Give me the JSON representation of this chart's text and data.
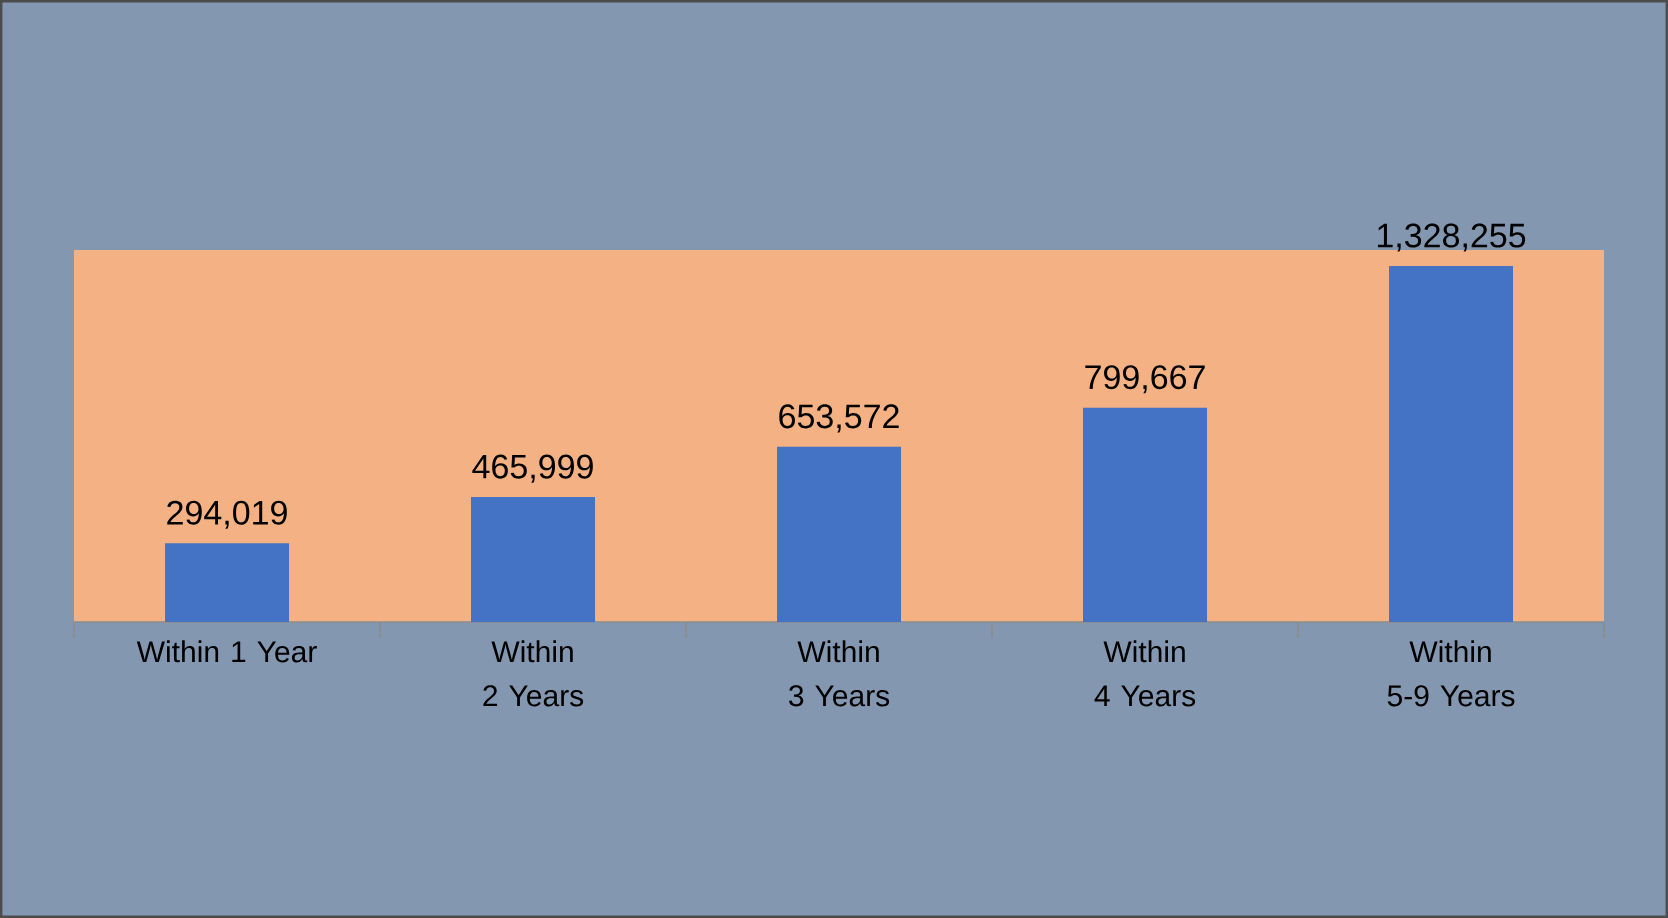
{
  "chart_data": {
    "type": "bar",
    "categories": [
      "Within 1 Year",
      "Within 2 Years",
      "Within 3 Years",
      "Within 4 Years",
      "Within 5-9 Years"
    ],
    "values": [
      294019,
      465999,
      653572,
      799667,
      1328255
    ],
    "value_labels": [
      "294,019",
      "465,999",
      "653,572",
      "799,667",
      "1,328,255"
    ],
    "color": "#4472c4"
  }
}
